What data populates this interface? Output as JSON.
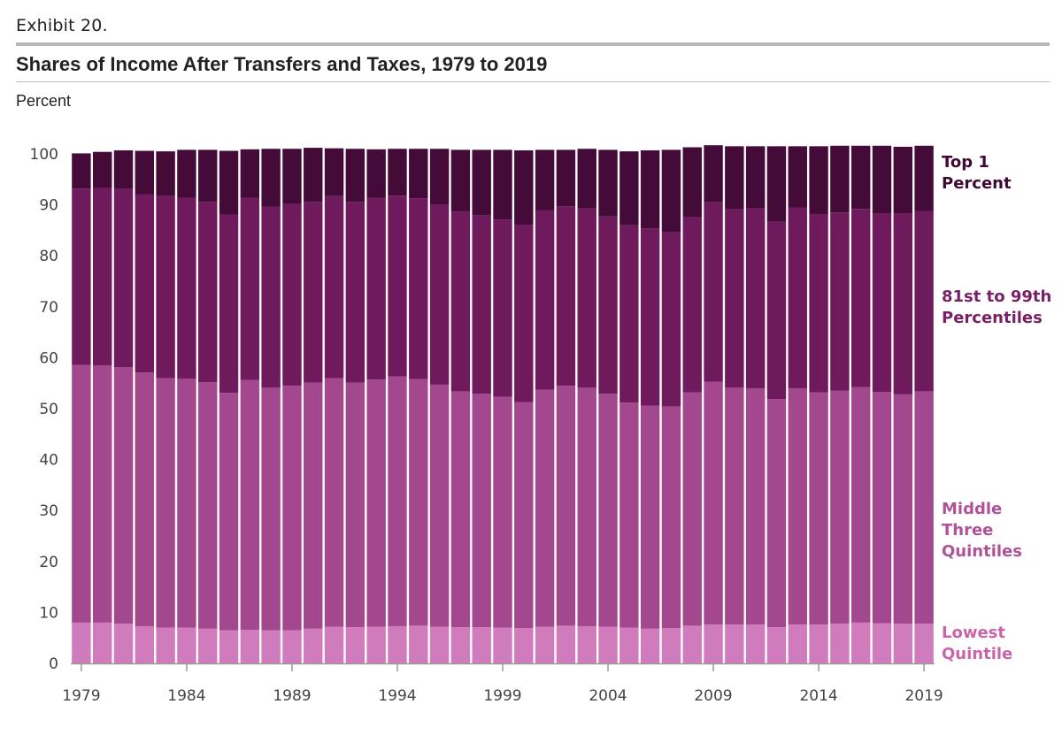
{
  "header": {
    "exhibit": "Exhibit 20.",
    "title": "Shares of Income After Transfers and Taxes, 1979 to 2019",
    "unit": "Percent"
  },
  "colors": {
    "lowest": "#d07bbb",
    "middle": "#a3478f",
    "upper": "#6f1a5d",
    "top1": "#440a38",
    "axis": "#9a9a9a",
    "grid_tick": "#444444"
  },
  "chart_data": {
    "type": "bar",
    "stacked": true,
    "title": "Shares of Income After Transfers and Taxes, 1979 to 2019",
    "ylabel": "Percent",
    "ylim": [
      0,
      100
    ],
    "yticks": [
      0,
      10,
      20,
      30,
      40,
      50,
      60,
      70,
      80,
      90,
      100
    ],
    "xticks": [
      "1979",
      "1984",
      "1989",
      "1994",
      "1999",
      "2004",
      "2009",
      "2014",
      "2019"
    ],
    "categories": [
      1979,
      1980,
      1981,
      1982,
      1983,
      1984,
      1985,
      1986,
      1987,
      1988,
      1989,
      1990,
      1991,
      1992,
      1993,
      1994,
      1995,
      1996,
      1997,
      1998,
      1999,
      2000,
      2001,
      2002,
      2003,
      2004,
      2005,
      2006,
      2007,
      2008,
      2009,
      2010,
      2011,
      2012,
      2013,
      2014,
      2015,
      2016,
      2017,
      2018,
      2019
    ],
    "series": [
      {
        "name": "Lowest Quintile",
        "label_lines": [
          "Lowest",
          "Quintile"
        ],
        "color": "#d07bbb",
        "values": [
          8,
          8,
          7.8,
          7.3,
          7,
          7,
          6.8,
          6.5,
          6.6,
          6.5,
          6.5,
          6.8,
          7.2,
          7.1,
          7.2,
          7.3,
          7.4,
          7.2,
          7.1,
          7.1,
          7,
          6.9,
          7.2,
          7.4,
          7.3,
          7.2,
          7,
          6.8,
          6.9,
          7.4,
          7.6,
          7.6,
          7.6,
          7.1,
          7.6,
          7.6,
          7.8,
          8,
          7.9,
          7.8,
          7.8
        ]
      },
      {
        "name": "Middle Three Quintiles",
        "label_lines": [
          "Middle",
          "Three",
          "Quintiles"
        ],
        "color": "#a3478f",
        "values": [
          50.6,
          50.5,
          50.3,
          49.8,
          49,
          48.9,
          48.4,
          46.6,
          49,
          47.6,
          48,
          48.3,
          48.8,
          48,
          48.5,
          49,
          48.4,
          47.5,
          46.3,
          45.8,
          45.3,
          44.4,
          46.5,
          47.1,
          46.8,
          45.7,
          44.2,
          43.8,
          43.5,
          45.8,
          47.7,
          46.5,
          46.4,
          44.8,
          46.4,
          45.6,
          45.7,
          46.2,
          45.4,
          45,
          45.6
        ]
      },
      {
        "name": "81st to 99th Percentiles",
        "label_lines": [
          "81st to 99th",
          "Percentiles"
        ],
        "color": "#6f1a5d",
        "values": [
          34.6,
          34.8,
          35,
          35,
          35.7,
          35.5,
          35.4,
          35,
          35.8,
          35.5,
          35.7,
          35.5,
          35.7,
          35.5,
          35.7,
          35.5,
          35.5,
          35.4,
          35.3,
          35,
          34.8,
          34.8,
          35.2,
          35.2,
          35.2,
          34.8,
          34.8,
          34.8,
          34.2,
          34.4,
          35.2,
          35,
          35.3,
          34.8,
          35.5,
          35,
          35,
          35,
          35,
          35.5,
          35.4
        ]
      },
      {
        "name": "Top 1 Percent",
        "label_lines": [
          "Top 1",
          "Percent"
        ],
        "color": "#440a38",
        "values": [
          6.9,
          7.1,
          7.6,
          8.5,
          8.8,
          9.4,
          10.2,
          12.5,
          9.5,
          11.4,
          10.8,
          10.6,
          9.4,
          10.4,
          9.5,
          9.2,
          9.7,
          10.9,
          12.1,
          12.9,
          13.7,
          14.6,
          11.9,
          11.1,
          11.7,
          13.1,
          14.5,
          15.3,
          16.2,
          13.7,
          11.2,
          12.4,
          12.2,
          14.8,
          12,
          13.3,
          13.1,
          12.4,
          13.3,
          13.1,
          12.8
        ]
      }
    ],
    "legend_placement": "right, aligned with each band",
    "grid": false
  }
}
